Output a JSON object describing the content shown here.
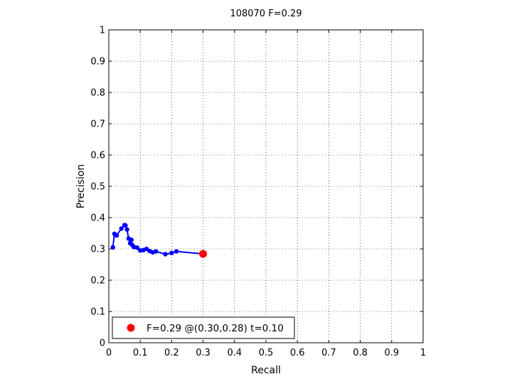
{
  "chart_data": {
    "type": "line",
    "title": "108070 F=0.29",
    "xlabel": "Recall",
    "ylabel": "Precision",
    "xlim": [
      0,
      1
    ],
    "ylim": [
      0,
      1
    ],
    "xticks": [
      "0",
      "0.1",
      "0.2",
      "0.3",
      "0.4",
      "0.5",
      "0.6",
      "0.7",
      "0.8",
      "0.9",
      "1"
    ],
    "yticks": [
      "0",
      "0.1",
      "0.2",
      "0.3",
      "0.4",
      "0.5",
      "0.6",
      "0.7",
      "0.8",
      "0.9",
      "1"
    ],
    "grid": true,
    "legend_position": "bottom-left",
    "series": [
      {
        "color": "#0000ff",
        "x": [
          0.013,
          0.018,
          0.025,
          0.04,
          0.05,
          0.053,
          0.058,
          0.063,
          0.068,
          0.072,
          0.075,
          0.08,
          0.09,
          0.1,
          0.11,
          0.12,
          0.13,
          0.14,
          0.15,
          0.18,
          0.2,
          0.215,
          0.3
        ],
        "y": [
          0.305,
          0.348,
          0.343,
          0.365,
          0.376,
          0.375,
          0.362,
          0.333,
          0.318,
          0.329,
          0.312,
          0.306,
          0.304,
          0.295,
          0.296,
          0.3,
          0.293,
          0.289,
          0.292,
          0.283,
          0.287,
          0.292,
          0.284
        ]
      }
    ],
    "highlight_point": {
      "x": 0.3,
      "y": 0.284,
      "color": "#ff0000"
    },
    "legend": {
      "label": "F=0.29 @(0.30,0.28) t=0.10",
      "marker_color": "#ff0000"
    }
  }
}
